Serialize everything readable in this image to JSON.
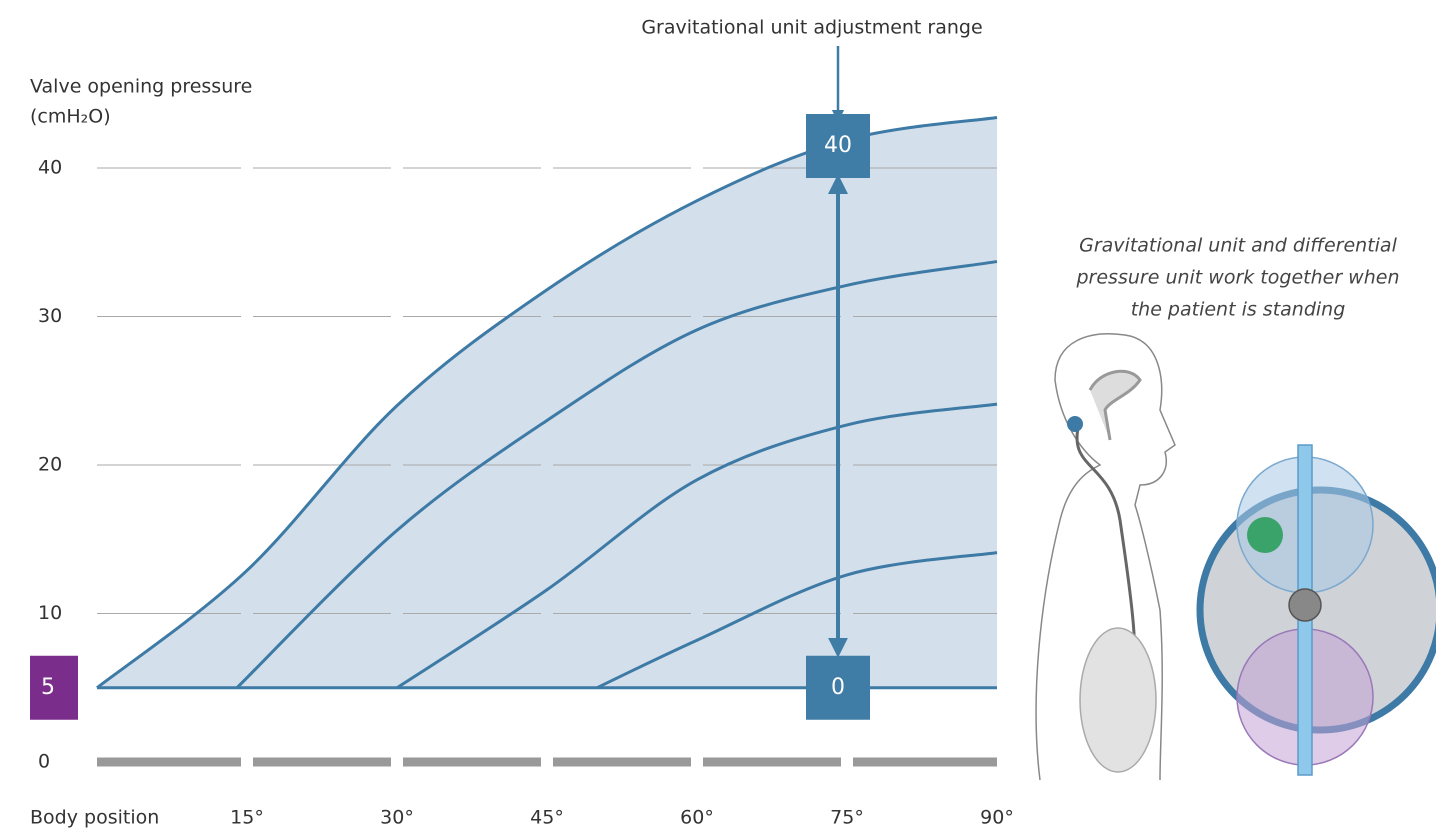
{
  "chart_data": {
    "type": "line",
    "y_label": [
      "Valve opening pressure",
      "(cmH₂O)"
    ],
    "x_label": "Body position",
    "xlim": [
      0,
      90
    ],
    "ylim": [
      0,
      45
    ],
    "xticks": [
      {
        "value": 15,
        "label": "15°"
      },
      {
        "value": 30,
        "label": "30°"
      },
      {
        "value": 45,
        "label": "45°"
      },
      {
        "value": 60,
        "label": "60°"
      },
      {
        "value": 75,
        "label": "75°"
      },
      {
        "value": 90,
        "label": "90°"
      }
    ],
    "yticks": [
      0,
      10,
      20,
      30,
      40
    ],
    "grid": true,
    "fill_color": "#d3dfeb",
    "series": [
      {
        "color": "#3d7aa5",
        "x": [
          0,
          15,
          30,
          45,
          60,
          75,
          90
        ],
        "values": [
          5,
          12.9,
          24.0,
          31.8,
          37.8,
          41.9,
          43.4
        ]
      },
      {
        "color": "#3d7aa5",
        "x": [
          14,
          30,
          45,
          60,
          75,
          90
        ],
        "values": [
          5,
          15.6,
          23.0,
          29.1,
          32.1,
          33.7
        ]
      },
      {
        "color": "#3d7aa5",
        "x": [
          30,
          45,
          60,
          75,
          90
        ],
        "values": [
          5,
          11.6,
          19.0,
          22.7,
          24.1
        ]
      },
      {
        "color": "#3d7aa5",
        "x": [
          50,
          60,
          75,
          90
        ],
        "values": [
          5,
          8.2,
          12.6,
          14.1
        ]
      }
    ],
    "annotations": {
      "range_label": "Gravitational unit adjustment range",
      "range_max": 40,
      "range_min": 0,
      "range_color": "#3f7ca6",
      "base_value": 5,
      "base_color": "#7b2d8b",
      "side_note": [
        "Gravitational unit and differential",
        "pressure unit work together when",
        "the patient is standing"
      ]
    }
  }
}
